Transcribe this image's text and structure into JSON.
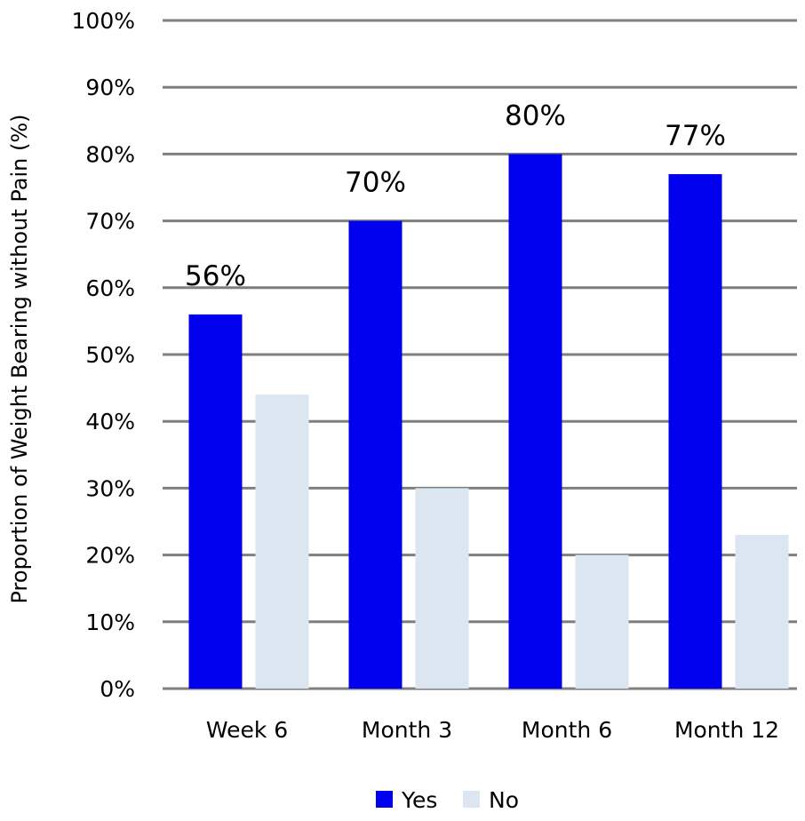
{
  "chart_data": {
    "type": "bar",
    "categories": [
      "Week 6",
      "Month 3",
      "Month 6",
      "Month 12"
    ],
    "series": [
      {
        "name": "Yes",
        "values": [
          56,
          70,
          80,
          77
        ],
        "color": "#0000ee",
        "data_labels": [
          "56%",
          "70%",
          "80%",
          "77%"
        ]
      },
      {
        "name": "No",
        "values": [
          44,
          30,
          20,
          23
        ],
        "color": "#dce6f1"
      }
    ],
    "title": "",
    "xlabel": "",
    "ylabel": "Proportion of Weight Bearing without Pain (%)",
    "ylim": [
      0,
      100
    ],
    "yticks": [
      "0%",
      "10%",
      "20%",
      "30%",
      "40%",
      "50%",
      "60%",
      "70%",
      "80%",
      "90%",
      "100%"
    ],
    "grid": true,
    "gridline_color": "#7f7f7f",
    "legend_position": "bottom"
  }
}
